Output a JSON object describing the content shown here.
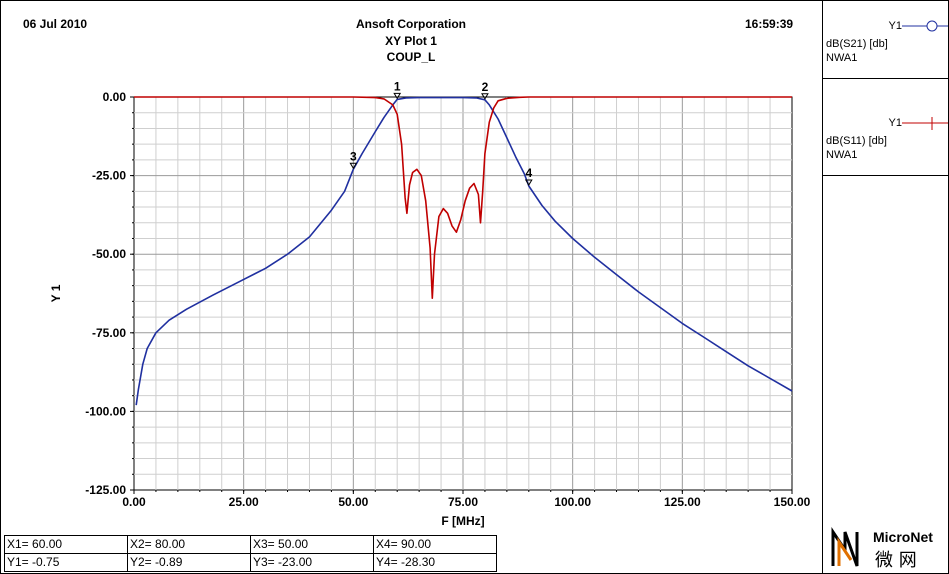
{
  "header": {
    "date": "06 Jul 2010",
    "company": "Ansoft Corporation",
    "plot_name": "XY Plot 1",
    "design": "COUP_L",
    "time": "16:59:39"
  },
  "legend": [
    {
      "trace": "Y1",
      "expression": "dB(S21) [db]",
      "source": "NWA1",
      "color": "#2030a0",
      "marker": "circle-icon"
    },
    {
      "trace": "Y1",
      "expression": "dB(S11) [db]",
      "source": "NWA1",
      "color": "#c00000",
      "marker": "plus-icon"
    }
  ],
  "markers": [
    {
      "x_label": "X1= 60.00",
      "y_label": "Y1= -0.75",
      "id": "1",
      "x": 60,
      "y": -0.75
    },
    {
      "x_label": "X2= 80.00",
      "y_label": "Y2= -0.89",
      "id": "2",
      "x": 80,
      "y": -0.89
    },
    {
      "x_label": "X3= 50.00",
      "y_label": "Y3= -23.00",
      "id": "3",
      "x": 50,
      "y": -23.0
    },
    {
      "x_label": "X4= 90.00",
      "y_label": "Y4= -28.30",
      "id": "4",
      "x": 90,
      "y": -28.3
    }
  ],
  "logo": {
    "text_en": "MicroNet",
    "text_cn": "微 网",
    "colors": [
      "#000000",
      "#e07000"
    ]
  },
  "chart_data": {
    "type": "line",
    "title": "XY Plot 1",
    "xlabel": "F [MHz]",
    "ylabel": "Y 1",
    "xlim": [
      0,
      150
    ],
    "ylim": [
      -125,
      0
    ],
    "x_ticks": [
      "0.00",
      "25.00",
      "50.00",
      "75.00",
      "100.00",
      "125.00",
      "150.00"
    ],
    "y_ticks": [
      "0.00",
      "-25.00",
      "-50.00",
      "-75.00",
      "-100.00",
      "-125.00"
    ],
    "grid": true,
    "series": [
      {
        "name": "dB(S21) [db]",
        "color": "#2030a0",
        "points": [
          [
            0.5,
            -98
          ],
          [
            1,
            -93
          ],
          [
            2,
            -85
          ],
          [
            3,
            -80
          ],
          [
            5,
            -75
          ],
          [
            8,
            -71
          ],
          [
            12,
            -67.5
          ],
          [
            18,
            -63
          ],
          [
            25,
            -58
          ],
          [
            30,
            -54.5
          ],
          [
            35,
            -50
          ],
          [
            40,
            -44.5
          ],
          [
            45,
            -36
          ],
          [
            48,
            -30
          ],
          [
            50,
            -23
          ],
          [
            52,
            -18
          ],
          [
            55,
            -11
          ],
          [
            57,
            -6.5
          ],
          [
            59,
            -2.5
          ],
          [
            60,
            -0.75
          ],
          [
            62,
            -0.3
          ],
          [
            65,
            -0.2
          ],
          [
            70,
            -0.2
          ],
          [
            75,
            -0.2
          ],
          [
            78,
            -0.3
          ],
          [
            80,
            -0.89
          ],
          [
            81,
            -2.5
          ],
          [
            83,
            -7
          ],
          [
            85,
            -13
          ],
          [
            87,
            -19
          ],
          [
            89,
            -24.5
          ],
          [
            90,
            -28.3
          ],
          [
            93,
            -34.5
          ],
          [
            96,
            -39.5
          ],
          [
            100,
            -45
          ],
          [
            105,
            -51
          ],
          [
            110,
            -56.5
          ],
          [
            115,
            -62
          ],
          [
            120,
            -67
          ],
          [
            125,
            -72
          ],
          [
            130,
            -76.5
          ],
          [
            135,
            -81
          ],
          [
            140,
            -85.5
          ],
          [
            145,
            -89.5
          ],
          [
            150,
            -93.5
          ]
        ]
      },
      {
        "name": "dB(S11) [db]",
        "color": "#c00000",
        "points": [
          [
            0,
            0
          ],
          [
            50,
            0
          ],
          [
            53,
            -0.1
          ],
          [
            55,
            -0.2
          ],
          [
            57,
            -0.6
          ],
          [
            59,
            -2.5
          ],
          [
            60,
            -5.5
          ],
          [
            61,
            -15
          ],
          [
            61.8,
            -32
          ],
          [
            62.2,
            -37
          ],
          [
            62.8,
            -28
          ],
          [
            63.5,
            -24
          ],
          [
            64.5,
            -23
          ],
          [
            65.5,
            -25
          ],
          [
            66.5,
            -33
          ],
          [
            67.5,
            -48
          ],
          [
            68,
            -64
          ],
          [
            68.5,
            -50
          ],
          [
            69.5,
            -38
          ],
          [
            70.5,
            -35.5
          ],
          [
            71.5,
            -37
          ],
          [
            72.5,
            -41
          ],
          [
            73.5,
            -43
          ],
          [
            74.5,
            -39
          ],
          [
            75.5,
            -33
          ],
          [
            76.5,
            -29
          ],
          [
            77.5,
            -27.5
          ],
          [
            78.5,
            -31
          ],
          [
            79,
            -40
          ],
          [
            79.5,
            -30
          ],
          [
            80,
            -18
          ],
          [
            81,
            -8
          ],
          [
            82,
            -3.5
          ],
          [
            83,
            -1.2
          ],
          [
            85,
            -0.4
          ],
          [
            88,
            -0.1
          ],
          [
            90,
            0
          ],
          [
            150,
            0
          ]
        ]
      }
    ]
  }
}
